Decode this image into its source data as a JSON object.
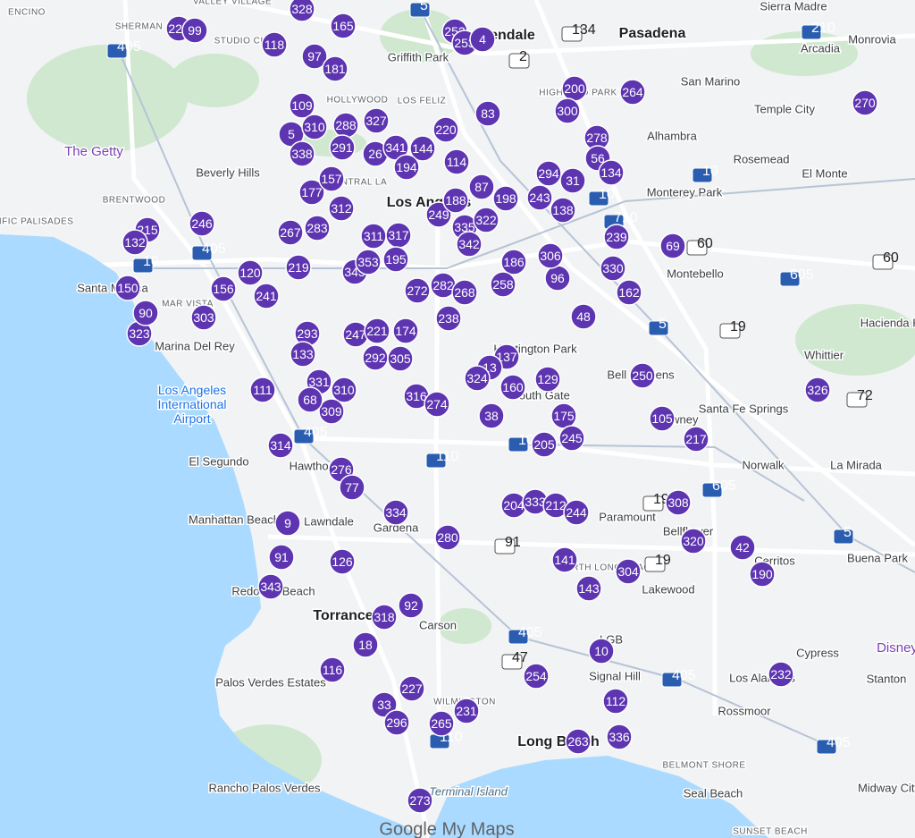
{
  "map": {
    "places": [
      "ENCINO",
      "SHERMAN OAKS",
      "STUDIO CITY",
      "VALLEY VILLAGE",
      "Griffith Park",
      "Glendale",
      "Pasadena",
      "Sierra Madre",
      "Monrovia",
      "Arcadia",
      "San Marino",
      "Temple City",
      "Alhambra",
      "Rosemead",
      "El Monte",
      "Monterey Park",
      "Montebello",
      "HOLLYWOOD",
      "LOS FELIZ",
      "Beverly Hills",
      "The Getty",
      "BRENTWOOD",
      "PACIFIC PALISADES",
      "Santa Monica",
      "MAR VISTA",
      "Marina Del Rey",
      "Los Angeles International Airport",
      "El Segundo",
      "Hawthorne",
      "Lawndale",
      "Manhattan Beach",
      "Gardena",
      "Redondo Beach",
      "Torrance",
      "Carson",
      "Palos Verdes Estates",
      "WILMINGTON",
      "Rancho Palos Verdes",
      "Terminal Island",
      "Long Beach",
      "Signal Hill",
      "BELMONT SHORE",
      "Seal Beach",
      "Rossmoor",
      "Los Alamitos",
      "Cypress",
      "Stanton",
      "Disney",
      "Midway City",
      "Lakewood",
      "NORTH LONG BEACH",
      "Paramount",
      "Downey",
      "Bellflower",
      "Cerritos",
      "Buena Park",
      "Norwalk",
      "La Mirada",
      "Santa Fe Springs",
      "Whittier",
      "Bell Gardens",
      "Huntington Park",
      "South Gate",
      "HIGHLAND PARK",
      "CENTRAL LA",
      "Hacienda Heights",
      "SUNSET BEACH",
      "LGB",
      "Los Angeles"
    ],
    "markers": [
      223,
      99,
      328,
      165,
      118,
      97,
      181,
      252,
      253,
      4,
      109,
      327,
      5,
      310,
      288,
      338,
      291,
      26,
      341,
      144,
      220,
      83,
      194,
      114,
      177,
      157,
      312,
      267,
      283,
      311,
      317,
      249,
      188,
      87,
      198,
      335,
      342,
      322,
      186,
      243,
      294,
      31,
      138,
      278,
      56,
      134,
      200,
      300,
      264,
      270,
      239,
      69,
      330,
      162,
      96,
      306,
      48,
      215,
      132,
      246,
      150,
      120,
      241,
      156,
      219,
      345,
      353,
      195,
      272,
      282,
      268,
      258,
      238,
      303,
      323,
      90,
      293,
      133,
      247,
      221,
      174,
      292,
      305,
      137,
      13,
      324,
      160,
      129,
      250,
      326,
      331,
      310,
      309,
      68,
      316,
      274,
      38,
      175,
      245,
      205,
      105,
      217,
      111,
      314,
      276,
      77,
      204,
      333,
      212,
      244,
      308,
      320,
      42,
      190,
      334,
      280,
      9,
      91,
      126,
      141,
      304,
      143,
      343,
      92,
      318,
      18,
      10,
      116,
      254,
      232,
      227,
      33,
      296,
      265,
      231,
      112,
      336,
      263,
      273
    ],
    "highways": [
      405,
      405,
      405,
      405,
      405,
      405,
      10,
      10,
      10,
      110,
      110,
      5,
      5,
      5,
      105,
      605,
      605,
      210,
      134,
      2,
      710,
      60,
      60,
      19,
      19,
      19,
      72,
      91,
      47
    ],
    "footer": "Google My Maps"
  }
}
